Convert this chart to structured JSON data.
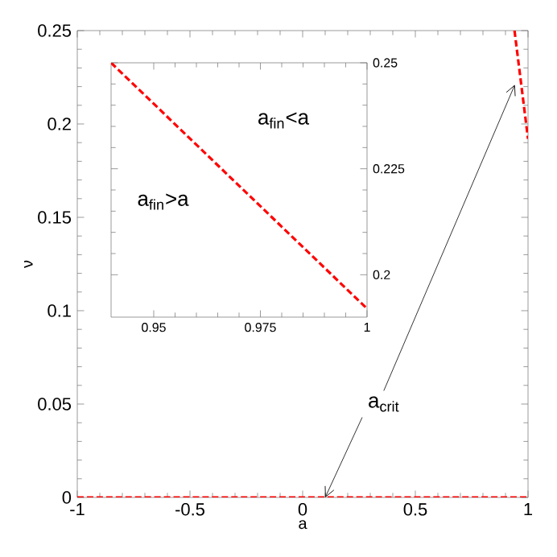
{
  "chart_data": [
    {
      "type": "line",
      "xlabel": "a",
      "ylabel": "ν",
      "xlim": [
        -1,
        1
      ],
      "ylim": [
        0,
        0.25
      ],
      "xticks": [
        -1,
        -0.5,
        0,
        0.5,
        1
      ],
      "yticks": [
        0,
        0.05,
        0.1,
        0.15,
        0.2,
        0.25
      ],
      "line_style": "dashed",
      "series": [
        {
          "color": "#ff0000",
          "x": [
            -1,
            1
          ],
          "values": [
            0,
            0
          ]
        },
        {
          "color": "#ff0000",
          "x": [
            0.94,
            0.97,
            1
          ],
          "values": [
            0.25,
            0.221,
            0.192
          ]
        }
      ],
      "annotations": [
        {
          "text": "a$_{crit}$",
          "x": 0.1,
          "y": 0
        }
      ]
    },
    {
      "type": "line",
      "xlim": [
        0.94,
        1
      ],
      "ylim": [
        0.19,
        0.25
      ],
      "xticks": [
        0.95,
        0.975,
        1
      ],
      "yticks": [
        0.2,
        0.225,
        0.25
      ],
      "line_style": "dashed",
      "series": [
        {
          "color": "#ff0000",
          "x": [
            0.94,
            1
          ],
          "values": [
            0.25,
            0.192
          ]
        }
      ],
      "annotations": [
        "a$_{fin}$<a",
        "a$_{fin}$>a"
      ]
    }
  ]
}
